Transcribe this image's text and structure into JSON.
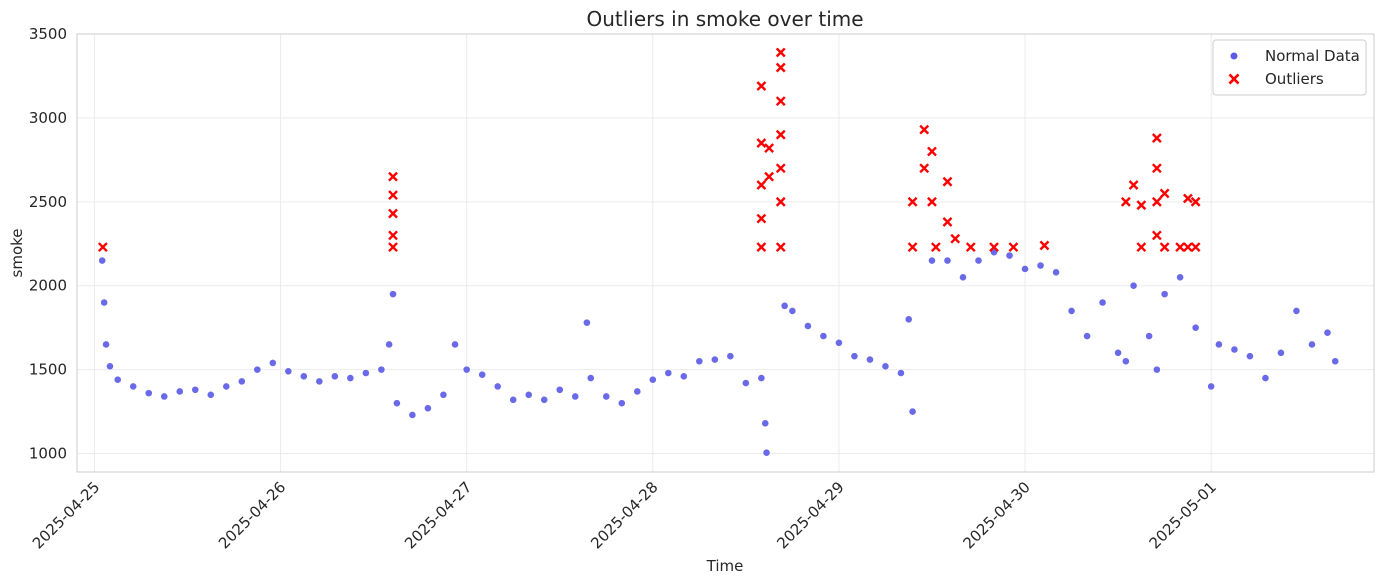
{
  "chart_data": {
    "type": "scatter",
    "title": "Outliers in smoke over time",
    "xlabel": "Time",
    "ylabel": "smoke",
    "x_axis": {
      "type": "date",
      "range": [
        "2025-04-24T21:45",
        "2025-05-01T21:00"
      ],
      "ticks": [
        "2025-04-25",
        "2025-04-26",
        "2025-04-27",
        "2025-04-28",
        "2025-04-29",
        "2025-04-30",
        "2025-05-01"
      ]
    },
    "y_axis": {
      "range": [
        890,
        3500
      ],
      "ticks": [
        1000,
        1500,
        2000,
        2500,
        3000,
        3500
      ]
    },
    "grid": true,
    "legend_position": "top-right",
    "colors": {
      "normal": "#5a5ae6",
      "normal_outline": "#ffffff",
      "outlier": "#ff0000"
    },
    "series": [
      {
        "name": "Normal Data",
        "marker": "circle",
        "points": [
          [
            "2025-04-25T01:00",
            2150
          ],
          [
            "2025-04-25T01:15",
            1900
          ],
          [
            "2025-04-25T01:30",
            1650
          ],
          [
            "2025-04-25T02:00",
            1520
          ],
          [
            "2025-04-25T03:00",
            1440
          ],
          [
            "2025-04-25T05:00",
            1400
          ],
          [
            "2025-04-25T07:00",
            1360
          ],
          [
            "2025-04-25T09:00",
            1340
          ],
          [
            "2025-04-25T11:00",
            1370
          ],
          [
            "2025-04-25T13:00",
            1380
          ],
          [
            "2025-04-25T15:00",
            1350
          ],
          [
            "2025-04-25T17:00",
            1400
          ],
          [
            "2025-04-25T19:00",
            1430
          ],
          [
            "2025-04-25T21:00",
            1500
          ],
          [
            "2025-04-25T23:00",
            1540
          ],
          [
            "2025-04-26T01:00",
            1490
          ],
          [
            "2025-04-26T03:00",
            1460
          ],
          [
            "2025-04-26T05:00",
            1430
          ],
          [
            "2025-04-26T07:00",
            1460
          ],
          [
            "2025-04-26T09:00",
            1450
          ],
          [
            "2025-04-26T11:00",
            1480
          ],
          [
            "2025-04-26T13:00",
            1500
          ],
          [
            "2025-04-26T14:00",
            1650
          ],
          [
            "2025-04-26T14:30",
            1950
          ],
          [
            "2025-04-26T15:00",
            1300
          ],
          [
            "2025-04-26T17:00",
            1230
          ],
          [
            "2025-04-26T19:00",
            1270
          ],
          [
            "2025-04-26T21:00",
            1350
          ],
          [
            "2025-04-26T22:30",
            1650
          ],
          [
            "2025-04-27T00:00",
            1500
          ],
          [
            "2025-04-27T02:00",
            1470
          ],
          [
            "2025-04-27T04:00",
            1400
          ],
          [
            "2025-04-27T06:00",
            1320
          ],
          [
            "2025-04-27T08:00",
            1350
          ],
          [
            "2025-04-27T10:00",
            1320
          ],
          [
            "2025-04-27T12:00",
            1380
          ],
          [
            "2025-04-27T14:00",
            1340
          ],
          [
            "2025-04-27T15:30",
            1780
          ],
          [
            "2025-04-27T16:00",
            1450
          ],
          [
            "2025-04-27T18:00",
            1340
          ],
          [
            "2025-04-27T20:00",
            1300
          ],
          [
            "2025-04-27T22:00",
            1370
          ],
          [
            "2025-04-28T00:00",
            1440
          ],
          [
            "2025-04-28T02:00",
            1480
          ],
          [
            "2025-04-28T04:00",
            1460
          ],
          [
            "2025-04-28T06:00",
            1550
          ],
          [
            "2025-04-28T08:00",
            1560
          ],
          [
            "2025-04-28T10:00",
            1580
          ],
          [
            "2025-04-28T12:00",
            1420
          ],
          [
            "2025-04-28T14:00",
            1450
          ],
          [
            "2025-04-28T14:30",
            1180
          ],
          [
            "2025-04-28T14:40",
            1005
          ],
          [
            "2025-04-28T17:00",
            1880
          ],
          [
            "2025-04-28T18:00",
            1850
          ],
          [
            "2025-04-28T20:00",
            1760
          ],
          [
            "2025-04-28T22:00",
            1700
          ],
          [
            "2025-04-29T00:00",
            1660
          ],
          [
            "2025-04-29T02:00",
            1580
          ],
          [
            "2025-04-29T04:00",
            1560
          ],
          [
            "2025-04-29T06:00",
            1520
          ],
          [
            "2025-04-29T08:00",
            1480
          ],
          [
            "2025-04-29T09:00",
            1800
          ],
          [
            "2025-04-29T09:30",
            1250
          ],
          [
            "2025-04-29T12:00",
            2150
          ],
          [
            "2025-04-29T14:00",
            2150
          ],
          [
            "2025-04-29T16:00",
            2050
          ],
          [
            "2025-04-29T18:00",
            2150
          ],
          [
            "2025-04-29T20:00",
            2200
          ],
          [
            "2025-04-29T22:00",
            2180
          ],
          [
            "2025-04-30T00:00",
            2100
          ],
          [
            "2025-04-30T02:00",
            2120
          ],
          [
            "2025-04-30T04:00",
            2080
          ],
          [
            "2025-04-30T06:00",
            1850
          ],
          [
            "2025-04-30T08:00",
            1700
          ],
          [
            "2025-04-30T10:00",
            1900
          ],
          [
            "2025-04-30T12:00",
            1600
          ],
          [
            "2025-04-30T13:00",
            1550
          ],
          [
            "2025-04-30T14:00",
            2000
          ],
          [
            "2025-04-30T16:00",
            1700
          ],
          [
            "2025-04-30T17:00",
            1500
          ],
          [
            "2025-04-30T18:00",
            1950
          ],
          [
            "2025-04-30T20:00",
            2050
          ],
          [
            "2025-04-30T22:00",
            1750
          ],
          [
            "2025-05-01T00:00",
            1400
          ],
          [
            "2025-05-01T01:00",
            1650
          ],
          [
            "2025-05-01T03:00",
            1620
          ],
          [
            "2025-05-01T05:00",
            1580
          ],
          [
            "2025-05-01T07:00",
            1450
          ],
          [
            "2025-05-01T09:00",
            1600
          ],
          [
            "2025-05-01T11:00",
            1850
          ],
          [
            "2025-05-01T13:00",
            1650
          ],
          [
            "2025-05-01T15:00",
            1720
          ],
          [
            "2025-05-01T16:00",
            1550
          ]
        ]
      },
      {
        "name": "Outliers",
        "marker": "x",
        "points": [
          [
            "2025-04-25T01:05",
            2230
          ],
          [
            "2025-04-26T14:30",
            2650
          ],
          [
            "2025-04-26T14:30",
            2540
          ],
          [
            "2025-04-26T14:30",
            2430
          ],
          [
            "2025-04-26T14:30",
            2300
          ],
          [
            "2025-04-26T14:30",
            2230
          ],
          [
            "2025-04-28T14:00",
            3190
          ],
          [
            "2025-04-28T14:00",
            2850
          ],
          [
            "2025-04-28T14:00",
            2600
          ],
          [
            "2025-04-28T14:00",
            2400
          ],
          [
            "2025-04-28T14:00",
            2230
          ],
          [
            "2025-04-28T15:00",
            2820
          ],
          [
            "2025-04-28T15:00",
            2650
          ],
          [
            "2025-04-28T16:30",
            3390
          ],
          [
            "2025-04-28T16:30",
            3300
          ],
          [
            "2025-04-28T16:30",
            3100
          ],
          [
            "2025-04-28T16:30",
            2900
          ],
          [
            "2025-04-28T16:30",
            2700
          ],
          [
            "2025-04-28T16:30",
            2500
          ],
          [
            "2025-04-28T16:30",
            2230
          ],
          [
            "2025-04-29T09:30",
            2500
          ],
          [
            "2025-04-29T09:30",
            2230
          ],
          [
            "2025-04-29T11:00",
            2930
          ],
          [
            "2025-04-29T11:00",
            2700
          ],
          [
            "2025-04-29T12:00",
            2800
          ],
          [
            "2025-04-29T12:00",
            2500
          ],
          [
            "2025-04-29T12:30",
            2230
          ],
          [
            "2025-04-29T14:00",
            2620
          ],
          [
            "2025-04-29T14:00",
            2380
          ],
          [
            "2025-04-29T15:00",
            2280
          ],
          [
            "2025-04-29T17:00",
            2230
          ],
          [
            "2025-04-29T20:00",
            2230
          ],
          [
            "2025-04-29T22:30",
            2230
          ],
          [
            "2025-04-30T02:30",
            2240
          ],
          [
            "2025-04-30T13:00",
            2500
          ],
          [
            "2025-04-30T14:00",
            2600
          ],
          [
            "2025-04-30T15:00",
            2480
          ],
          [
            "2025-04-30T15:00",
            2230
          ],
          [
            "2025-04-30T17:00",
            2880
          ],
          [
            "2025-04-30T17:00",
            2700
          ],
          [
            "2025-04-30T17:00",
            2500
          ],
          [
            "2025-04-30T17:00",
            2300
          ],
          [
            "2025-04-30T18:00",
            2550
          ],
          [
            "2025-04-30T18:00",
            2230
          ],
          [
            "2025-04-30T20:00",
            2230
          ],
          [
            "2025-04-30T21:00",
            2520
          ],
          [
            "2025-04-30T21:00",
            2230
          ],
          [
            "2025-04-30T22:00",
            2500
          ],
          [
            "2025-04-30T22:00",
            2230
          ]
        ]
      }
    ]
  }
}
